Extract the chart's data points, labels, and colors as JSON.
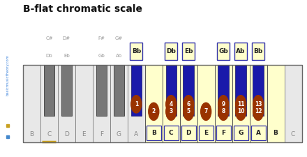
{
  "title": "B-flat chromatic scale",
  "bg_color": "#ffffff",
  "sidebar_bg": "#1a1a2e",
  "sidebar_text": "basicmusictheory.com",
  "sidebar_text_color": "#4488dd",
  "sidebar_dot1": "#c8a020",
  "sidebar_dot2": "#4488cc",
  "white_key_color": "#e8e8e8",
  "white_key_active_fill": "#ffffcc",
  "black_key_gray": "#777777",
  "black_key_active": "#1a1aaa",
  "number_circle_color": "#993300",
  "number_text_color": "#ffffff",
  "note_box_border": "#3333aa",
  "note_box_fill": "#ffffcc",
  "c_underline_color": "#c8a020",
  "white_notes": [
    "B",
    "C",
    "D",
    "E",
    "F",
    "G",
    "A",
    "B",
    "C",
    "D",
    "E",
    "F",
    "G",
    "A",
    "B",
    "C"
  ],
  "active_white_set": [
    7,
    8,
    9,
    10,
    11,
    12,
    13,
    14
  ],
  "active_white_numbers": [
    2,
    3,
    5,
    7,
    8,
    10,
    12,
    null
  ],
  "black_key_positions": [
    1.5,
    2.5,
    4.5,
    5.5,
    6.5,
    8.5,
    9.5,
    11.5,
    12.5,
    13.5
  ],
  "active_black_positions": [
    6.5,
    8.5,
    9.5,
    11.5,
    12.5,
    13.5
  ],
  "black_numbers": {
    "6.5": 1,
    "8.5": 4,
    "9.5": 6,
    "11.5": 9,
    "12.5": 11,
    "13.5": 13
  },
  "inactive_black_labels": {
    "1.5": [
      "C#",
      "Db"
    ],
    "2.5": [
      "D#",
      "Eb"
    ],
    "4.5": [
      "F#",
      "Gb"
    ],
    "5.5": [
      "G#",
      "Ab"
    ]
  },
  "active_black_labels": {
    "6.5": "Bb",
    "8.5": "Db",
    "9.5": "Eb",
    "11.5": "Gb",
    "12.5": "Ab",
    "13.5": "Bb"
  },
  "num_white_keys": 16,
  "piano_border_color": "#666666",
  "inactive_label_color": "#888888"
}
